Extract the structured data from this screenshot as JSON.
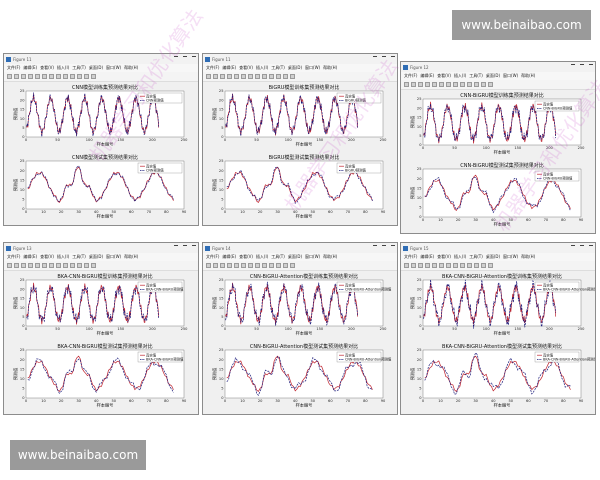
{
  "banners": {
    "top": "www.beinaibao.com",
    "bottom": "www.beinaibao.com"
  },
  "watermark_text": "机器学习和优化算法",
  "menu": [
    "文件(F)",
    "编辑(E)",
    "查看(V)",
    "插入(I)",
    "工具(T)",
    "桌面(D)",
    "窗口(W)",
    "帮助(H)"
  ],
  "legend": {
    "true": "真实值",
    "pred": "预测值"
  },
  "axes": {
    "xlabel": "样本编号",
    "ylabel": "预测值"
  },
  "colors": {
    "true": "#c0242f",
    "pred": "#1a1a7a"
  },
  "windows": [
    {
      "title": "Figure 11",
      "top_title": "CNN模型训练集预测结果对比",
      "bottom_title": "CNN模型测试集预测结果对比",
      "pred_name_top": "CNN预测值",
      "pred_name_bottom": "CNN预测值"
    },
    {
      "title": "Figure 11",
      "top_title": "BiGRU模型训练集预测结果对比",
      "bottom_title": "BiGRU模型测试集预测结果对比",
      "pred_name_top": "BiGRU预测值",
      "pred_name_bottom": "BiGRU预测值"
    },
    {
      "title": "Figure 12",
      "top_title": "CNN-BiGRU模型训练集预测结果对比",
      "bottom_title": "CNN-BiGRU模型测试集预测结果对比",
      "pred_name_top": "CNN-BiGRU预测值",
      "pred_name_bottom": "CNN-BiGRU预测值"
    },
    {
      "title": "Figure 13",
      "top_title": "BKA-CNN-BiGRU模型训练集预测结果对比",
      "bottom_title": "BKA-CNN-BiGRU模型测试集预测结果对比",
      "pred_name_top": "BKA-CNN-BiGRU预测值",
      "pred_name_bottom": "BKA-CNN-BiGRU预测值"
    },
    {
      "title": "Figure 14",
      "top_title": "CNN-BiGRU-Attention模型训练集预测结果对比",
      "bottom_title": "CNN-BiGRU-Attention模型测试集预测结果对比",
      "pred_name_top": "CNN-BiGRU-Attention预测值",
      "pred_name_bottom": "CNN-BiGRU-Attention预测值"
    },
    {
      "title": "Figure 15",
      "top_title": "BKA-CNN-BiGRU-Attention模型训练集预测结果对比",
      "bottom_title": "BKA-CNN-BiGRU-Attention模型测试集预测结果对比",
      "pred_name_top": "BKA-CNN-BiGRU-Attention预测值",
      "pred_name_bottom": "BKA-CNN-BiGRU-Attention预测值"
    }
  ],
  "chart_data": {
    "train": {
      "type": "line",
      "xlim": [
        0,
        250
      ],
      "ylim": [
        0,
        25
      ],
      "xticks": [
        0,
        50,
        100,
        150,
        200,
        250
      ],
      "yticks": [
        0,
        5,
        10,
        15,
        20,
        25
      ],
      "n_points": 210
    },
    "test": {
      "type": "line",
      "xlim": [
        0,
        90
      ],
      "ylim": [
        0,
        25
      ],
      "xticks": [
        0,
        10,
        20,
        30,
        40,
        50,
        60,
        70,
        80,
        90
      ],
      "yticks": [
        0,
        5,
        10,
        15,
        20,
        25
      ],
      "n_points": 84
    }
  }
}
